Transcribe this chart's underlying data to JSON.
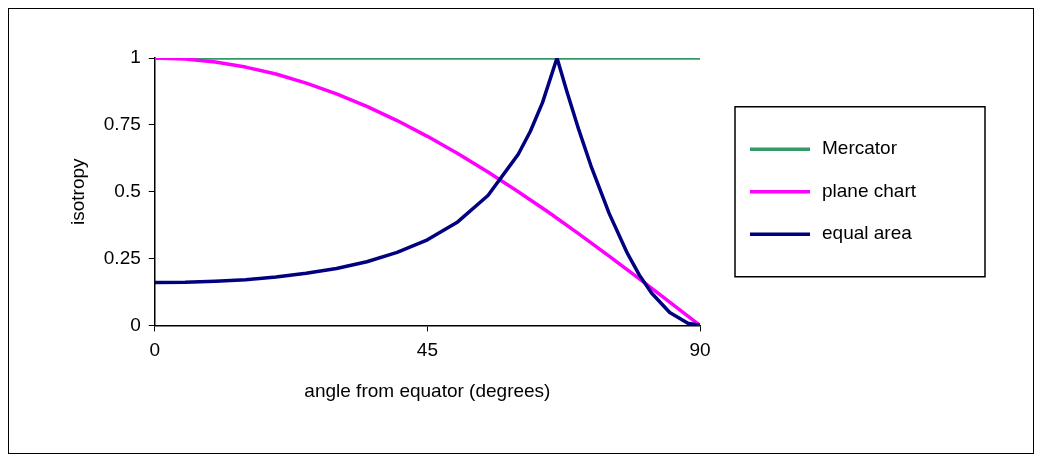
{
  "chart_data": {
    "type": "line",
    "xlabel": "angle from equator (degrees)",
    "ylabel": "isotropy",
    "xlim": [
      0,
      90
    ],
    "xticks": [
      0,
      45,
      90
    ],
    "ylim": [
      0,
      1
    ],
    "yticks": [
      0,
      0.25,
      0.5,
      0.75,
      1
    ],
    "grid": false,
    "legend": "right",
    "marker": "none",
    "line_style": "solid",
    "series": [
      {
        "name": "Mercator",
        "color": "#339966",
        "x": [
          0,
          90
        ],
        "values": [
          1,
          1
        ]
      },
      {
        "name": "plane chart",
        "color": "#ff00ff",
        "x": [
          0,
          5,
          10,
          15,
          20,
          25,
          30,
          35,
          40,
          45,
          50,
          55,
          60,
          65,
          70,
          75,
          80,
          85,
          90
        ],
        "values": [
          1,
          0.996,
          0.985,
          0.966,
          0.94,
          0.906,
          0.866,
          0.819,
          0.766,
          0.707,
          0.643,
          0.574,
          0.5,
          0.423,
          0.342,
          0.259,
          0.174,
          0.087,
          0
        ]
      },
      {
        "name": "equal area",
        "color": "#000080",
        "x": [
          0,
          5,
          10,
          15,
          20,
          25,
          30,
          35,
          40,
          45,
          50,
          55,
          60,
          62,
          64,
          66.4,
          68,
          70,
          72,
          75,
          78,
          80,
          82,
          85,
          88,
          90
        ],
        "values": [
          0.16,
          0.161,
          0.165,
          0.171,
          0.181,
          0.195,
          0.213,
          0.238,
          0.273,
          0.32,
          0.387,
          0.486,
          0.64,
          0.726,
          0.833,
          1,
          0.877,
          0.731,
          0.597,
          0.419,
          0.27,
          0.188,
          0.121,
          0.048,
          0.008,
          0
        ]
      }
    ]
  }
}
